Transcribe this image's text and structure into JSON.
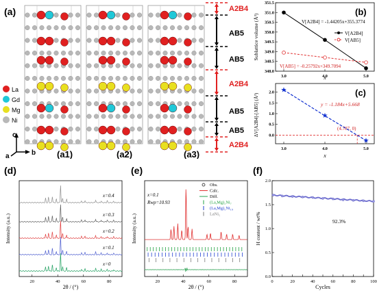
{
  "panel_labels": {
    "a": "(a)",
    "b": "(b)",
    "c": "(c)",
    "d": "(d)",
    "e": "(e)",
    "f": "(f)"
  },
  "structure": {
    "sub_labels": [
      "(a1)",
      "(a2)",
      "(a3)"
    ],
    "layers": [
      "A2B4",
      "AB5",
      "AB5",
      "A2B4",
      "AB5",
      "AB5",
      "A2B4"
    ],
    "legend": [
      {
        "label": "La",
        "color": "#e02020"
      },
      {
        "label": "Gd",
        "color": "#20c8d8"
      },
      {
        "label": "Mg",
        "color": "#e8e020"
      },
      {
        "label": "Ni",
        "color": "#b8b8b8"
      }
    ],
    "axes": {
      "c": "c",
      "a": "a",
      "b": "b"
    },
    "colors": {
      "a2b4": "#e02020",
      "ab5": "#000000"
    }
  },
  "chart_data": [
    {
      "id": "b",
      "type": "line",
      "ylabel": "Sublattice volume (Å³)",
      "xlabel": "x",
      "xlim": [
        2.8,
        5.2
      ],
      "ylim": [
        348,
        351.5
      ],
      "xticks": [
        3.0,
        4.0,
        5.0
      ],
      "yticks": [
        348.0,
        348.5,
        349.0,
        349.5,
        350.0,
        350.5,
        351.0,
        351.5
      ],
      "series": [
        {
          "name": "V[A2B4]",
          "color": "#000000",
          "dashed": false,
          "x": [
            3,
            4,
            5
          ],
          "y": [
            351.0,
            349.6,
            348.15
          ]
        },
        {
          "name": "V[AB5]",
          "color": "#e03030",
          "dashed": true,
          "x": [
            3,
            4,
            5
          ],
          "y": [
            348.95,
            348.7,
            348.45
          ]
        }
      ],
      "annotations": [
        "V[A2B4] = -1.44205x+355.3774",
        "V[AB5] = -0.25792x+349.7094"
      ],
      "legend_position": "top-right"
    },
    {
      "id": "c",
      "type": "line",
      "ylabel": "ΔV[A2B4]-[AB5] (Å³)",
      "xlabel": "x",
      "xlim": [
        2.8,
        5.2
      ],
      "ylim": [
        -0.4,
        2.4
      ],
      "xticks": [
        3.0,
        4.0,
        5.0
      ],
      "yticks": [
        0.0,
        0.5,
        1.0,
        1.5,
        2.0
      ],
      "series": [
        {
          "name": "",
          "color": "#1030d0",
          "dashed": true,
          "x": [
            3,
            4,
            5
          ],
          "y": [
            2.1,
            0.9,
            -0.25
          ]
        }
      ],
      "annotations": [
        "y = -1.184x+5.668",
        "(4.787, 0)"
      ]
    },
    {
      "id": "d",
      "type": "line",
      "ylabel": "Intensity (a.u.)",
      "xlabel": "2θ / (°)",
      "xlim": [
        10,
        90
      ],
      "xticks": [
        20,
        40,
        60,
        80
      ],
      "series": [
        {
          "name": "x=0",
          "color": "#20a060"
        },
        {
          "name": "x=0.1",
          "color": "#5060d0"
        },
        {
          "name": "x=0.2",
          "color": "#e04040"
        },
        {
          "name": "x=0.3",
          "color": "#606060"
        },
        {
          "name": "x=0.4",
          "color": "#909090"
        }
      ]
    },
    {
      "id": "e",
      "type": "line",
      "ylabel": "Intensity (a.u.)",
      "xlabel": "2θ / (°)",
      "xlim": [
        10,
        90
      ],
      "xticks": [
        20,
        40,
        60,
        80
      ],
      "legend": [
        {
          "label": "Obs.",
          "color": "#000000",
          "marker": "circle"
        },
        {
          "label": "Calc.",
          "color": "#e03030",
          "marker": "line"
        },
        {
          "label": "Diff.",
          "color": "#2aa050",
          "marker": "line"
        },
        {
          "label": "(La,Mg)₂Ni₇",
          "color": "#20a040",
          "marker": "tick"
        },
        {
          "label": "(La,Mg)₅Ni₁₉",
          "color": "#2040d0",
          "marker": "tick"
        },
        {
          "label": "LaNi₅",
          "color": "#7a7a7a",
          "marker": "tick"
        }
      ],
      "text": [
        "x=0.1",
        "Rwp=10.93"
      ]
    },
    {
      "id": "f",
      "type": "line",
      "ylabel": "H content / wt%",
      "xlabel": "Cycles",
      "xlim": [
        0,
        100
      ],
      "ylim": [
        0,
        2.0
      ],
      "xticks": [
        0,
        10,
        20,
        30,
        40,
        50,
        60,
        70,
        80,
        90,
        100
      ],
      "yticks": [
        0.0,
        0.5,
        1.0,
        1.5,
        2.0
      ],
      "series": [
        {
          "name": "",
          "color": "#6a6acd",
          "x": [
            1,
            10,
            20,
            30,
            40,
            50,
            60,
            70,
            80,
            90,
            100
          ],
          "y": [
            1.7,
            1.68,
            1.67,
            1.66,
            1.65,
            1.63,
            1.62,
            1.6,
            1.59,
            1.58,
            1.57
          ]
        }
      ],
      "annotations": [
        "92.3%"
      ]
    }
  ]
}
